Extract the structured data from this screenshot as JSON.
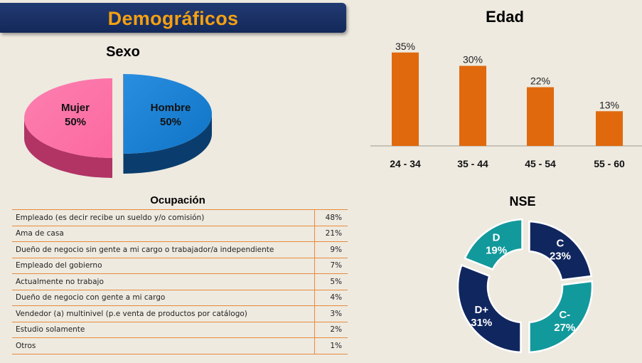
{
  "header": {
    "title": "Demográficos"
  },
  "colors": {
    "banner": "#1a3266",
    "title_text": "#f5a012",
    "hombre": "#0f74c6",
    "mujer": "#fb69a0",
    "edad_bar": "#e0690e",
    "nse_navy": "#10265e",
    "nse_teal": "#12999c",
    "table_border": "#e88a3c"
  },
  "chart_data": [
    {
      "type": "pie",
      "title": "Sexo",
      "slices": [
        {
          "label": "Hombre",
          "value": 50,
          "display": "50%"
        },
        {
          "label": "Mujer",
          "value": 50,
          "display": "50%"
        }
      ]
    },
    {
      "type": "bar",
      "title": "Edad",
      "categories": [
        "24 - 34",
        "35 - 44",
        "45 - 54",
        "55 - 60"
      ],
      "values": [
        35,
        30,
        22,
        13
      ],
      "value_labels": [
        "35%",
        "30%",
        "22%",
        "13%"
      ],
      "ylim": [
        0,
        40
      ],
      "grid": false
    },
    {
      "type": "table",
      "title": "Ocupación",
      "rows": [
        {
          "label": "Empleado (es decir recibe un sueldo y/o comisión)",
          "value": "48%"
        },
        {
          "label": "Ama de casa",
          "value": "21%"
        },
        {
          "label": "Dueño de negocio sin gente a mi cargo o trabajador/a independiente",
          "value": "9%"
        },
        {
          "label": "Empleado del gobierno",
          "value": "7%"
        },
        {
          "label": "Actualmente no trabajo",
          "value": "5%"
        },
        {
          "label": "Dueño de negocio con gente a mi cargo",
          "value": "4%"
        },
        {
          "label": "Vendedor (a) multinivel (p.e venta de productos por catálogo)",
          "value": "3%"
        },
        {
          "label": "Estudio solamente",
          "value": "2%"
        },
        {
          "label": "Otros",
          "value": "1%"
        }
      ]
    },
    {
      "type": "pie",
      "title": "NSE",
      "donut": true,
      "slices": [
        {
          "label": "C",
          "value": 23,
          "display": "23%"
        },
        {
          "label": "C-",
          "value": 27,
          "display": "27%"
        },
        {
          "label": "D+",
          "value": 31,
          "display": "31%"
        },
        {
          "label": "D",
          "value": 19,
          "display": "19%"
        }
      ]
    }
  ]
}
